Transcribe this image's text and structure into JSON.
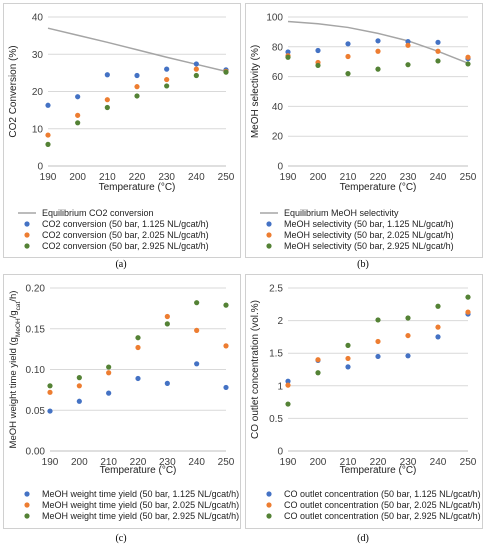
{
  "colors": {
    "series_blue": "#4472c4",
    "series_orange": "#ed7d31",
    "series_green": "#548235",
    "equilibrium_line": "#a5a5a5",
    "axis_text": "#404040",
    "gridline": "#d9d9d9"
  },
  "chart_data": [
    {
      "type": "scatter",
      "panel_label": "(a)",
      "xlabel": "Temperature (°C)",
      "ylabel": "CO2 Conversion (%)",
      "xlim": [
        190,
        250
      ],
      "ylim": [
        0,
        40
      ],
      "xticks": [
        190,
        200,
        210,
        220,
        230,
        240,
        250
      ],
      "yticks": [
        0,
        10,
        20,
        30,
        40
      ],
      "grid": true,
      "legend_position": "bottom",
      "series": [
        {
          "name": "Equilibrium CO2 conversion",
          "style": "line",
          "color": "#a5a5a5",
          "x": [
            190,
            200,
            210,
            220,
            230,
            240,
            250
          ],
          "y": [
            37,
            35.1,
            33.2,
            31.2,
            29.2,
            27.3,
            25.4
          ]
        },
        {
          "name": "CO2 conversion (50 bar, 1.125 NL/gcat/h)",
          "style": "marker",
          "color": "#4472c4",
          "x": [
            190,
            200,
            210,
            220,
            230,
            240,
            250
          ],
          "y": [
            16.3,
            18.6,
            24.5,
            24.3,
            26,
            27.4,
            25.8
          ]
        },
        {
          "name": "CO2 conversion (50 bar, 2.025 NL/gcat/h)",
          "style": "marker",
          "color": "#ed7d31",
          "x": [
            190,
            200,
            210,
            220,
            230,
            240,
            250
          ],
          "y": [
            8.3,
            13.6,
            17.8,
            21.3,
            23.2,
            26,
            25.4
          ]
        },
        {
          "name": "CO2 conversion (50 bar, 2.925 NL/gcat/h)",
          "style": "marker",
          "color": "#548235",
          "x": [
            190,
            200,
            210,
            220,
            230,
            240,
            250
          ],
          "y": [
            5.8,
            11.6,
            15.7,
            18.8,
            21.5,
            24.3,
            25.2
          ]
        }
      ]
    },
    {
      "type": "scatter",
      "panel_label": "(b)",
      "xlabel": "Temperature (°C)",
      "ylabel": "MeOH selectivity (%)",
      "xlim": [
        190,
        250
      ],
      "ylim": [
        0,
        100
      ],
      "xticks": [
        190,
        200,
        210,
        220,
        230,
        240,
        250
      ],
      "yticks": [
        0,
        20,
        40,
        60,
        80,
        100
      ],
      "grid": true,
      "legend_position": "bottom",
      "series": [
        {
          "name": "Equilibrium MeOH selectivity",
          "style": "line",
          "color": "#a5a5a5",
          "x": [
            190,
            200,
            210,
            220,
            230,
            240,
            250
          ],
          "y": [
            97,
            95.5,
            93,
            89,
            84,
            77,
            69
          ]
        },
        {
          "name": "MeOH selectivity (50 bar, 1.125 NL/gcat/h)",
          "style": "marker",
          "color": "#4472c4",
          "x": [
            190,
            200,
            210,
            220,
            230,
            240,
            250
          ],
          "y": [
            76.5,
            77.5,
            82,
            84,
            83.5,
            83,
            72
          ]
        },
        {
          "name": "MeOH selectivity (50 bar, 2.025 NL/gcat/h)",
          "style": "marker",
          "color": "#ed7d31",
          "x": [
            190,
            200,
            210,
            220,
            230,
            240,
            250
          ],
          "y": [
            74,
            69.5,
            73.5,
            77,
            81,
            77,
            73
          ]
        },
        {
          "name": "MeOH selectivity (50 bar, 2.925 NL/gcat/h)",
          "style": "marker",
          "color": "#548235",
          "x": [
            190,
            200,
            210,
            220,
            230,
            240,
            250
          ],
          "y": [
            73,
            67.5,
            62,
            65,
            68,
            70.5,
            68.5
          ]
        }
      ]
    },
    {
      "type": "scatter",
      "panel_label": "(c)",
      "xlabel": "Temperature (°C)",
      "ylabel": "MeOH weight time yield (gMeOH/gcat/h)",
      "ylabel_main": "MeOH weight time yield (g",
      "ylabel_sub1": "MeOH",
      "ylabel_mid": "/g",
      "ylabel_sub2": "cat",
      "ylabel_end": "/h)",
      "xlim": [
        190,
        250
      ],
      "ylim": [
        0,
        0.2
      ],
      "xticks": [
        190,
        200,
        210,
        220,
        230,
        240,
        250
      ],
      "yticks": [
        0.0,
        0.05,
        0.1,
        0.15,
        0.2
      ],
      "ytick_labels": [
        "0.00",
        "0.05",
        "0.10",
        "0.15",
        "0.20"
      ],
      "grid": true,
      "legend_position": "bottom",
      "series": [
        {
          "name": "MeOH weight time yield (50 bar, 1.125 NL/gcat/h)",
          "style": "marker",
          "color": "#4472c4",
          "x": [
            190,
            200,
            210,
            220,
            230,
            240,
            250
          ],
          "y": [
            0.049,
            0.061,
            0.071,
            0.089,
            0.083,
            0.107,
            0.078
          ]
        },
        {
          "name": "MeOH weight time yield (50 bar, 2.025 NL/gcat/h)",
          "style": "marker",
          "color": "#ed7d31",
          "x": [
            190,
            200,
            210,
            220,
            230,
            240,
            250
          ],
          "y": [
            0.072,
            0.08,
            0.096,
            0.127,
            0.165,
            0.148,
            0.129
          ]
        },
        {
          "name": "MeOH weight time yield (50 bar, 2.925 NL/gcat/h)",
          "style": "marker",
          "color": "#548235",
          "x": [
            190,
            200,
            210,
            220,
            230,
            240,
            250
          ],
          "y": [
            0.08,
            0.09,
            0.103,
            0.139,
            0.156,
            0.182,
            0.179
          ]
        }
      ]
    },
    {
      "type": "scatter",
      "panel_label": "(d)",
      "xlabel": "Temperature (°C)",
      "ylabel": "CO outlet concentration (vol.%)",
      "xlim": [
        190,
        250
      ],
      "ylim": [
        0,
        2.5
      ],
      "xticks": [
        190,
        200,
        210,
        220,
        230,
        240,
        250
      ],
      "yticks": [
        0,
        0.5,
        1,
        1.5,
        2,
        2.5
      ],
      "ytick_labels": [
        "0",
        "0.5",
        "1",
        "1.5",
        "2",
        "2.5"
      ],
      "grid": true,
      "legend_position": "bottom",
      "series": [
        {
          "name": "CO outlet concentration (50 bar, 1.125 NL/gcat/h)",
          "style": "marker",
          "color": "#4472c4",
          "x": [
            190,
            200,
            210,
            220,
            230,
            240,
            250
          ],
          "y": [
            1.07,
            1.39,
            1.29,
            1.45,
            1.46,
            1.75,
            2.1
          ]
        },
        {
          "name": "CO outlet concentration (50 bar, 2.025 NL/gcat/h)",
          "style": "marker",
          "color": "#ed7d31",
          "x": [
            190,
            200,
            210,
            220,
            230,
            240,
            250
          ],
          "y": [
            1.01,
            1.4,
            1.42,
            1.68,
            1.77,
            1.9,
            2.13
          ]
        },
        {
          "name": "CO outlet concentration (50 bar, 2.925 NL/gcat/h)",
          "style": "marker",
          "color": "#548235",
          "x": [
            190,
            200,
            210,
            220,
            230,
            240,
            250
          ],
          "y": [
            0.72,
            1.2,
            1.62,
            2.01,
            2.04,
            2.22,
            2.36
          ]
        }
      ]
    }
  ]
}
